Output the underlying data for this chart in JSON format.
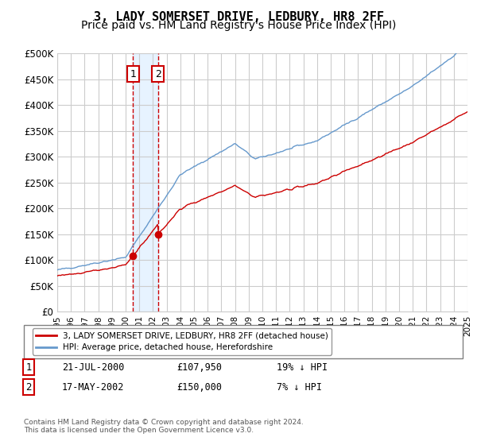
{
  "title": "3, LADY SOMERSET DRIVE, LEDBURY, HR8 2FF",
  "subtitle": "Price paid vs. HM Land Registry's House Price Index (HPI)",
  "ylabel_ticks": [
    "£0",
    "£50K",
    "£100K",
    "£150K",
    "£200K",
    "£250K",
    "£300K",
    "£350K",
    "£400K",
    "£450K",
    "£500K"
  ],
  "ytick_values": [
    0,
    50000,
    100000,
    150000,
    200000,
    250000,
    300000,
    350000,
    400000,
    450000,
    500000
  ],
  "x_start_year": 1995,
  "x_end_year": 2025,
  "transaction1_date": 2000.55,
  "transaction1_price": 107950,
  "transaction1_label": "1",
  "transaction2_date": 2002.37,
  "transaction2_price": 150000,
  "transaction2_label": "2",
  "line_color_property": "#cc0000",
  "line_color_hpi": "#6699cc",
  "background_color": "#ffffff",
  "grid_color": "#cccccc",
  "shade_color": "#ddeeff",
  "legend_label_property": "3, LADY SOMERSET DRIVE, LEDBURY, HR8 2FF (detached house)",
  "legend_label_hpi": "HPI: Average price, detached house, Herefordshire",
  "table_row1": [
    "1",
    "21-JUL-2000",
    "£107,950",
    "19% ↓ HPI"
  ],
  "table_row2": [
    "2",
    "17-MAY-2002",
    "£150,000",
    "7% ↓ HPI"
  ],
  "footnote": "Contains HM Land Registry data © Crown copyright and database right 2024.\nThis data is licensed under the Open Government Licence v3.0.",
  "title_fontsize": 11,
  "subtitle_fontsize": 10
}
